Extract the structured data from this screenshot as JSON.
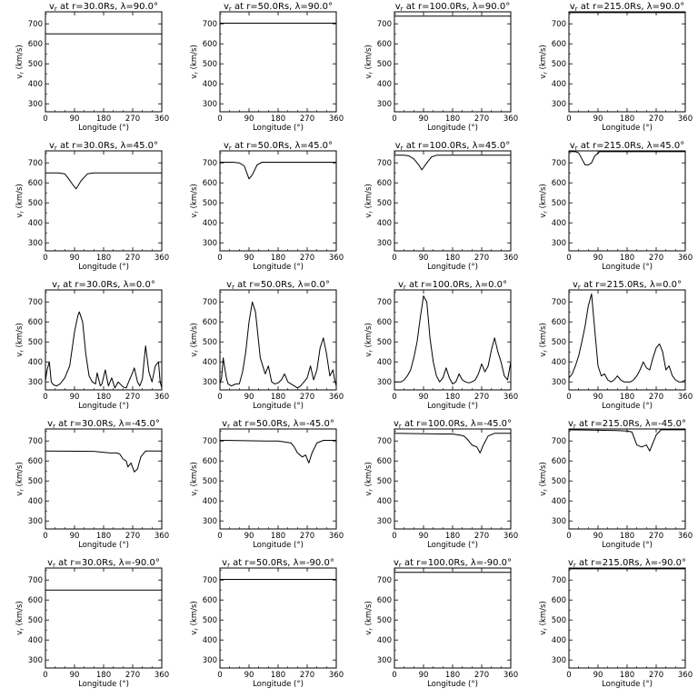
{
  "figure": {
    "xlabel": "Longitude (°)",
    "ylabel": "v<sub>r</sub> (km/s)",
    "xticks": [
      0,
      90,
      180,
      270,
      360
    ],
    "yticks": [
      300,
      400,
      500,
      600,
      700
    ],
    "xlim": [
      0,
      360
    ],
    "ylim": [
      260,
      760
    ]
  },
  "chart_data": [
    {
      "type": "line",
      "title": "vr at r=30.0Rs, λ=90.0°",
      "xlabel": "Longitude (°)",
      "ylabel": "vr (km/s)",
      "xlim": [
        0,
        360
      ],
      "ylim": [
        260,
        760
      ],
      "grid": false,
      "x": [
        0,
        360
      ],
      "series": [
        {
          "y": [
            650,
            650
          ]
        }
      ]
    },
    {
      "type": "line",
      "title": "vr at r=50.0Rs, λ=90.0°",
      "xlabel": "Longitude (°)",
      "ylabel": "vr (km/s)",
      "xlim": [
        0,
        360
      ],
      "ylim": [
        260,
        760
      ],
      "grid": false,
      "x": [
        0,
        360
      ],
      "series": [
        {
          "y": [
            703,
            703
          ]
        }
      ]
    },
    {
      "type": "line",
      "title": "vr at r=100.0Rs, λ=90.0°",
      "xlabel": "Longitude (°)",
      "ylabel": "vr (km/s)",
      "xlim": [
        0,
        360
      ],
      "ylim": [
        260,
        760
      ],
      "grid": false,
      "x": [
        0,
        360
      ],
      "series": [
        {
          "y": [
            738,
            738
          ]
        }
      ]
    },
    {
      "type": "line",
      "title": "vr at r=215.0Rs, λ=90.0°",
      "xlabel": "Longitude (°)",
      "ylabel": "vr (km/s)",
      "xlim": [
        0,
        360
      ],
      "ylim": [
        260,
        760
      ],
      "grid": false,
      "x": [
        0,
        360
      ],
      "series": [
        {
          "y": [
            756,
            756
          ]
        }
      ]
    },
    {
      "type": "line",
      "title": "vr at r=30.0Rs, λ=45.0°",
      "xlabel": "Longitude (°)",
      "ylabel": "vr (km/s)",
      "xlim": [
        0,
        360
      ],
      "ylim": [
        260,
        760
      ],
      "grid": false,
      "x": [
        0,
        40,
        60,
        72,
        85,
        95,
        110,
        130,
        150,
        200,
        240,
        360
      ],
      "series": [
        {
          "y": [
            650,
            650,
            645,
            620,
            590,
            570,
            610,
            645,
            650,
            650,
            650,
            650
          ]
        }
      ]
    },
    {
      "type": "line",
      "title": "vr at r=50.0Rs, λ=45.0°",
      "xlabel": "Longitude (°)",
      "ylabel": "vr (km/s)",
      "xlim": [
        0,
        360
      ],
      "ylim": [
        260,
        760
      ],
      "grid": false,
      "x": [
        0,
        40,
        60,
        75,
        90,
        100,
        115,
        130,
        150,
        360
      ],
      "series": [
        {
          "y": [
            703,
            703,
            700,
            685,
            620,
            640,
            690,
            703,
            703,
            703
          ]
        }
      ]
    },
    {
      "type": "line",
      "title": "vr at r=100.0Rs, λ=45.0°",
      "xlabel": "Longitude (°)",
      "ylabel": "vr (km/s)",
      "xlim": [
        0,
        360
      ],
      "ylim": [
        260,
        760
      ],
      "grid": false,
      "x": [
        0,
        30,
        45,
        60,
        75,
        85,
        100,
        115,
        130,
        360
      ],
      "series": [
        {
          "y": [
            738,
            738,
            735,
            720,
            690,
            665,
            700,
            730,
            738,
            738
          ]
        }
      ]
    },
    {
      "type": "line",
      "title": "vr at r=215.0Rs, λ=45.0°",
      "xlabel": "Longitude (°)",
      "ylabel": "vr (km/s)",
      "xlim": [
        0,
        360
      ],
      "ylim": [
        260,
        760
      ],
      "grid": false,
      "x": [
        0,
        20,
        30,
        40,
        50,
        60,
        70,
        80,
        95,
        360
      ],
      "series": [
        {
          "y": [
            756,
            756,
            750,
            720,
            690,
            690,
            700,
            735,
            756,
            756
          ]
        }
      ]
    },
    {
      "type": "line",
      "title": "vr at r=30.0Rs, λ=0.0°",
      "xlabel": "Longitude (°)",
      "ylabel": "vr (km/s)",
      "xlim": [
        0,
        360
      ],
      "ylim": [
        260,
        760
      ],
      "grid": false,
      "x": [
        0,
        5,
        12,
        18,
        25,
        35,
        45,
        60,
        75,
        90,
        100,
        105,
        115,
        125,
        135,
        145,
        155,
        160,
        170,
        175,
        185,
        195,
        205,
        215,
        225,
        240,
        250,
        260,
        268,
        275,
        285,
        292,
        300,
        305,
        310,
        320,
        330,
        340,
        350,
        355,
        360
      ],
      "series": [
        {
          "y": [
            305,
            360,
            400,
            300,
            285,
            280,
            290,
            320,
            380,
            550,
            630,
            650,
            600,
            440,
            330,
            300,
            290,
            345,
            280,
            290,
            360,
            280,
            320,
            270,
            300,
            275,
            270,
            310,
            340,
            370,
            300,
            280,
            315,
            400,
            480,
            350,
            300,
            380,
            400,
            300,
            270
          ]
        }
      ]
    },
    {
      "type": "line",
      "title": "vr at r=50.0Rs, λ=0.0°",
      "xlabel": "Longitude (°)",
      "ylabel": "vr (km/s)",
      "xlim": [
        0,
        360
      ],
      "ylim": [
        260,
        760
      ],
      "grid": false,
      "x": [
        0,
        5,
        10,
        15,
        20,
        25,
        35,
        50,
        60,
        70,
        80,
        90,
        100,
        110,
        125,
        140,
        150,
        160,
        170,
        180,
        190,
        200,
        210,
        220,
        230,
        240,
        250,
        260,
        270,
        280,
        290,
        300,
        310,
        320,
        330,
        340,
        350,
        355,
        360
      ],
      "series": [
        {
          "y": [
            290,
            320,
            420,
            370,
            320,
            290,
            280,
            290,
            290,
            350,
            450,
            600,
            700,
            650,
            420,
            340,
            380,
            300,
            290,
            295,
            310,
            340,
            300,
            290,
            280,
            270,
            280,
            300,
            320,
            380,
            310,
            360,
            470,
            520,
            440,
            330,
            360,
            310,
            280
          ]
        }
      ]
    },
    {
      "type": "line",
      "title": "vr at r=100.0Rs, λ=0.0°",
      "xlabel": "Longitude (°)",
      "ylabel": "vr (km/s)",
      "xlim": [
        0,
        360
      ],
      "ylim": [
        260,
        760
      ],
      "grid": false,
      "x": [
        0,
        10,
        20,
        30,
        40,
        50,
        60,
        70,
        80,
        90,
        100,
        110,
        120,
        130,
        140,
        150,
        160,
        170,
        180,
        190,
        200,
        210,
        220,
        230,
        240,
        250,
        260,
        270,
        280,
        290,
        300,
        310,
        320,
        330,
        340,
        350,
        360
      ],
      "series": [
        {
          "y": [
            300,
            300,
            300,
            310,
            330,
            360,
            420,
            500,
            620,
            730,
            700,
            520,
            400,
            330,
            300,
            320,
            370,
            320,
            290,
            300,
            340,
            310,
            300,
            295,
            300,
            310,
            340,
            390,
            350,
            380,
            460,
            520,
            450,
            400,
            330,
            310,
            400
          ]
        }
      ]
    },
    {
      "type": "line",
      "title": "vr at r=215.0Rs, λ=0.0°",
      "xlabel": "Longitude (°)",
      "ylabel": "vr (km/s)",
      "xlim": [
        0,
        360
      ],
      "ylim": [
        260,
        760
      ],
      "grid": false,
      "x": [
        0,
        10,
        20,
        30,
        40,
        50,
        60,
        70,
        80,
        90,
        100,
        110,
        120,
        130,
        140,
        150,
        160,
        170,
        180,
        190,
        200,
        210,
        220,
        230,
        240,
        250,
        260,
        270,
        280,
        290,
        300,
        310,
        320,
        330,
        340,
        350,
        360
      ],
      "series": [
        {
          "y": [
            320,
            340,
            380,
            430,
            500,
            580,
            680,
            740,
            560,
            380,
            330,
            340,
            310,
            300,
            310,
            330,
            310,
            300,
            300,
            300,
            310,
            330,
            360,
            400,
            370,
            360,
            420,
            470,
            490,
            450,
            360,
            380,
            330,
            310,
            300,
            300,
            310
          ]
        }
      ]
    },
    {
      "type": "line",
      "title": "vr at r=30.0Rs, λ=-45.0°",
      "xlabel": "Longitude (°)",
      "ylabel": "vr (km/s)",
      "xlim": [
        0,
        360
      ],
      "ylim": [
        260,
        760
      ],
      "grid": false,
      "x": [
        0,
        150,
        200,
        220,
        230,
        240,
        250,
        255,
        265,
        275,
        285,
        295,
        310,
        360
      ],
      "series": [
        {
          "y": [
            650,
            648,
            640,
            640,
            635,
            610,
            600,
            570,
            590,
            545,
            560,
            620,
            650,
            650
          ]
        }
      ]
    },
    {
      "type": "line",
      "title": "vr at r=50.0Rs, λ=-45.0°",
      "xlabel": "Longitude (°)",
      "ylabel": "vr (km/s)",
      "xlim": [
        0,
        360
      ],
      "ylim": [
        260,
        760
      ],
      "grid": false,
      "x": [
        0,
        140,
        180,
        200,
        220,
        230,
        240,
        255,
        265,
        275,
        285,
        300,
        320,
        360
      ],
      "series": [
        {
          "y": [
            703,
            700,
            700,
            695,
            690,
            670,
            640,
            620,
            630,
            590,
            640,
            690,
            703,
            703
          ]
        }
      ]
    },
    {
      "type": "line",
      "title": "vr at r=100.0Rs, λ=-45.0°",
      "xlabel": "Longitude (°)",
      "ylabel": "vr (km/s)",
      "xlim": [
        0,
        360
      ],
      "ylim": [
        260,
        760
      ],
      "grid": false,
      "x": [
        0,
        140,
        180,
        200,
        215,
        225,
        240,
        255,
        265,
        275,
        290,
        310,
        360
      ],
      "series": [
        {
          "y": [
            738,
            735,
            735,
            730,
            725,
            710,
            680,
            670,
            640,
            680,
            725,
            738,
            738
          ]
        }
      ]
    },
    {
      "type": "line",
      "title": "vr at r=215.0Rs, λ=-45.0°",
      "xlabel": "Longitude (°)",
      "ylabel": "vr (km/s)",
      "xlim": [
        0,
        360
      ],
      "ylim": [
        260,
        760
      ],
      "grid": false,
      "x": [
        0,
        150,
        180,
        195,
        210,
        225,
        240,
        250,
        260,
        270,
        285,
        360
      ],
      "series": [
        {
          "y": [
            756,
            752,
            750,
            745,
            680,
            670,
            680,
            650,
            690,
            730,
            756,
            756
          ]
        }
      ]
    },
    {
      "type": "line",
      "title": "vr at r=30.0Rs, λ=-90.0°",
      "xlabel": "Longitude (°)",
      "ylabel": "vr (km/s)",
      "xlim": [
        0,
        360
      ],
      "ylim": [
        260,
        760
      ],
      "grid": false,
      "x": [
        0,
        360
      ],
      "series": [
        {
          "y": [
            650,
            650
          ]
        }
      ]
    },
    {
      "type": "line",
      "title": "vr at r=50.0Rs, λ=-90.0°",
      "xlabel": "Longitude (°)",
      "ylabel": "vr (km/s)",
      "xlim": [
        0,
        360
      ],
      "ylim": [
        260,
        760
      ],
      "grid": false,
      "x": [
        0,
        360
      ],
      "series": [
        {
          "y": [
            703,
            703
          ]
        }
      ]
    },
    {
      "type": "line",
      "title": "vr at r=100.0Rs, λ=-90.0°",
      "xlabel": "Longitude (°)",
      "ylabel": "vr (km/s)",
      "xlim": [
        0,
        360
      ],
      "ylim": [
        260,
        760
      ],
      "grid": false,
      "x": [
        0,
        360
      ],
      "series": [
        {
          "y": [
            738,
            738
          ]
        }
      ]
    },
    {
      "type": "line",
      "title": "vr at r=215.0Rs, λ=-90.0°",
      "xlabel": "Longitude (°)",
      "ylabel": "vr (km/s)",
      "xlim": [
        0,
        360
      ],
      "ylim": [
        260,
        760
      ],
      "grid": false,
      "x": [
        0,
        360
      ],
      "series": [
        {
          "y": [
            756,
            756
          ]
        }
      ]
    }
  ],
  "panel_titles": [
    {
      "r": "30.0",
      "lat": "90.0"
    },
    {
      "r": "50.0",
      "lat": "90.0"
    },
    {
      "r": "100.0",
      "lat": "90.0"
    },
    {
      "r": "215.0",
      "lat": "90.0"
    },
    {
      "r": "30.0",
      "lat": "45.0"
    },
    {
      "r": "50.0",
      "lat": "45.0"
    },
    {
      "r": "100.0",
      "lat": "45.0"
    },
    {
      "r": "215.0",
      "lat": "45.0"
    },
    {
      "r": "30.0",
      "lat": "0.0"
    },
    {
      "r": "50.0",
      "lat": "0.0"
    },
    {
      "r": "100.0",
      "lat": "0.0"
    },
    {
      "r": "215.0",
      "lat": "0.0"
    },
    {
      "r": "30.0",
      "lat": "-45.0"
    },
    {
      "r": "50.0",
      "lat": "-45.0"
    },
    {
      "r": "100.0",
      "lat": "-45.0"
    },
    {
      "r": "215.0",
      "lat": "-45.0"
    },
    {
      "r": "30.0",
      "lat": "-90.0"
    },
    {
      "r": "50.0",
      "lat": "-90.0"
    },
    {
      "r": "100.0",
      "lat": "-90.0"
    },
    {
      "r": "215.0",
      "lat": "-90.0"
    }
  ]
}
